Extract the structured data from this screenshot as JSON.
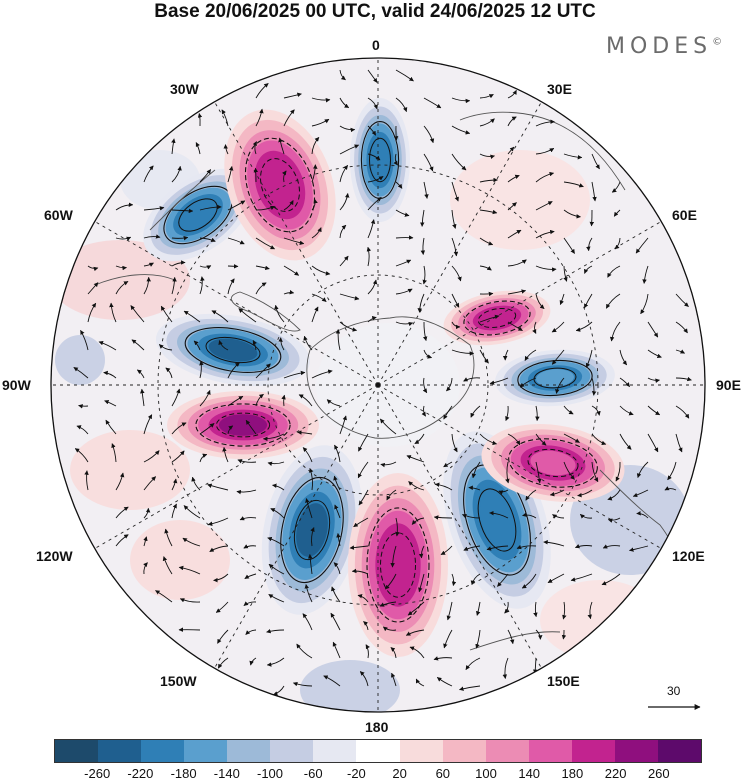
{
  "title": "Base 20/06/2025 00 UTC, valid 24/06/2025 12 UTC",
  "brand": "MODES",
  "brand_mark": "©",
  "longitude_labels": [
    "0",
    "30E",
    "60E",
    "90E",
    "120E",
    "150E",
    "180",
    "150W",
    "120W",
    "90W",
    "60W",
    "30W"
  ],
  "vector_scale_label": "30",
  "colorbar": {
    "colors": [
      "#1d4a6b",
      "#1f5f8f",
      "#2f7fb6",
      "#5a9fce",
      "#9dbad8",
      "#c5cde3",
      "#e6e8f2",
      "#ffffff",
      "#f8dcdc",
      "#f4b8c4",
      "#ec8cb4",
      "#e05aa8",
      "#c2238f",
      "#8f0f7e",
      "#5d0a6b"
    ],
    "tick_labels": [
      "-260",
      "-220",
      "-180",
      "-140",
      "-100",
      "-60",
      "-20",
      "20",
      "60",
      "100",
      "140",
      "180",
      "220",
      "260"
    ]
  },
  "map": {
    "projection": "polar stereographic (south pole)",
    "anomaly_centers": [
      {
        "sign": "negative",
        "level": "-200"
      },
      {
        "sign": "positive",
        "level": "220"
      },
      {
        "sign": "negative",
        "level": "-180"
      },
      {
        "sign": "positive",
        "level": "220"
      },
      {
        "sign": "negative",
        "level": "-220"
      },
      {
        "sign": "positive",
        "level": "260"
      },
      {
        "sign": "negative",
        "level": "-220"
      },
      {
        "sign": "positive",
        "level": "220"
      },
      {
        "sign": "negative",
        "level": "-180"
      },
      {
        "sign": "positive",
        "level": "180"
      },
      {
        "sign": "negative",
        "level": "-140"
      }
    ]
  }
}
